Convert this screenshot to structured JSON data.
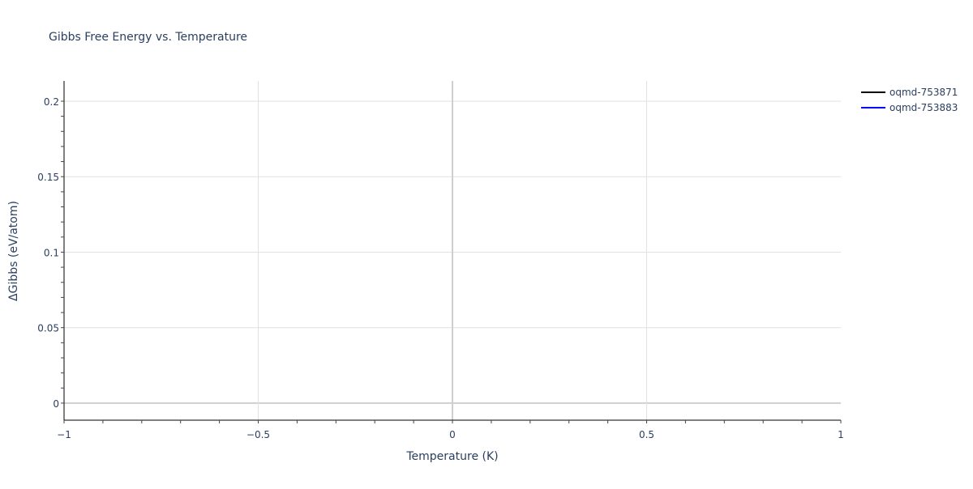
{
  "chart_data": {
    "type": "line",
    "title": "Gibbs Free Energy vs. Temperature",
    "xlabel": "Temperature (K)",
    "ylabel": "ΔGibbs (eV/atom)",
    "xlim": [
      -1,
      1
    ],
    "ylim": [
      -0.0113,
      0.2134
    ],
    "x_ticks": [
      -1,
      -0.5,
      0,
      0.5,
      1
    ],
    "x_tick_labels": [
      "−1",
      "−0.5",
      "0",
      "0.5",
      "1"
    ],
    "y_ticks": [
      0,
      0.05,
      0.1,
      0.15,
      0.2
    ],
    "y_tick_labels": [
      "0",
      "0.05",
      "0.1",
      "0.15",
      "0.2"
    ],
    "grid": true,
    "legend_position": "top-right",
    "series": [
      {
        "name": "oqmd-753871",
        "color": "#000000",
        "x": [],
        "y": []
      },
      {
        "name": "oqmd-753883",
        "color": "#0000ff",
        "x": [],
        "y": []
      }
    ]
  }
}
